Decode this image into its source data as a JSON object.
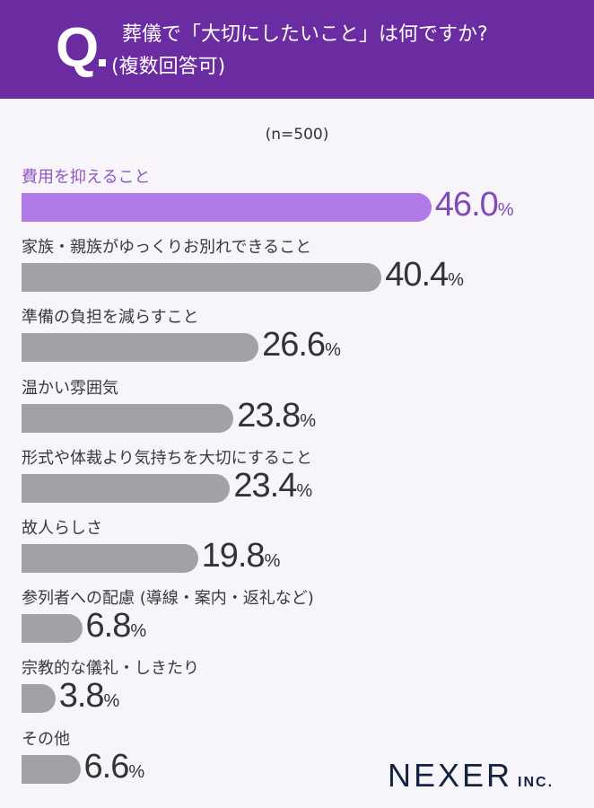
{
  "header": {
    "q_mark": "Q",
    "question_line1": "葬儀で「大切にしたいこと」は何ですか?",
    "question_line2": "(複数回答可)"
  },
  "sample": "(n=500)",
  "bars": [
    {
      "label": "費用を抑えること",
      "value": "46.0",
      "pct": "%"
    },
    {
      "label": "家族・親族がゆっくりお別れできること",
      "value": "40.4",
      "pct": "%"
    },
    {
      "label": "準備の負担を減らすこと",
      "value": "26.6",
      "pct": "%"
    },
    {
      "label": "温かい雰囲気",
      "value": "23.8",
      "pct": "%"
    },
    {
      "label": "形式や体裁より気持ちを大切にすること",
      "value": "23.4",
      "pct": "%"
    },
    {
      "label": "故人らしさ",
      "value": "19.8",
      "pct": "%"
    },
    {
      "label": "参列者への配慮 (導線・案内・返礼など)",
      "value": "6.8",
      "pct": "%"
    },
    {
      "label": "宗教的な儀礼・しきたり",
      "value": "3.8",
      "pct": "%"
    },
    {
      "label": "その他",
      "value": "6.6",
      "pct": "%"
    }
  ],
  "logo": {
    "main": "NEXER",
    "sub": "INC."
  },
  "colors": {
    "header": "#6A2CA0",
    "highlight_bar": "#B279E8",
    "bar": "#A2A2A6",
    "background": "#F7F4FA"
  },
  "chart_data": {
    "type": "bar",
    "orientation": "horizontal",
    "title": "葬儀で「大切にしたいこと」は何ですか?(複数回答可)",
    "subtitle": "(n=500)",
    "categories": [
      "費用を抑えること",
      "家族・親族がゆっくりお別れできること",
      "準備の負担を減らすこと",
      "温かい雰囲気",
      "形式や体裁より気持ちを大切にすること",
      "故人らしさ",
      "参列者への配慮 (導線・案内・返礼など)",
      "宗教的な儀礼・しきたり",
      "その他"
    ],
    "values": [
      46.0,
      40.4,
      26.6,
      23.8,
      23.4,
      19.8,
      6.8,
      3.8,
      6.6
    ],
    "unit": "%",
    "xlabel": "",
    "ylabel": "",
    "grid": false,
    "legend": null,
    "highlight_index": 0
  }
}
